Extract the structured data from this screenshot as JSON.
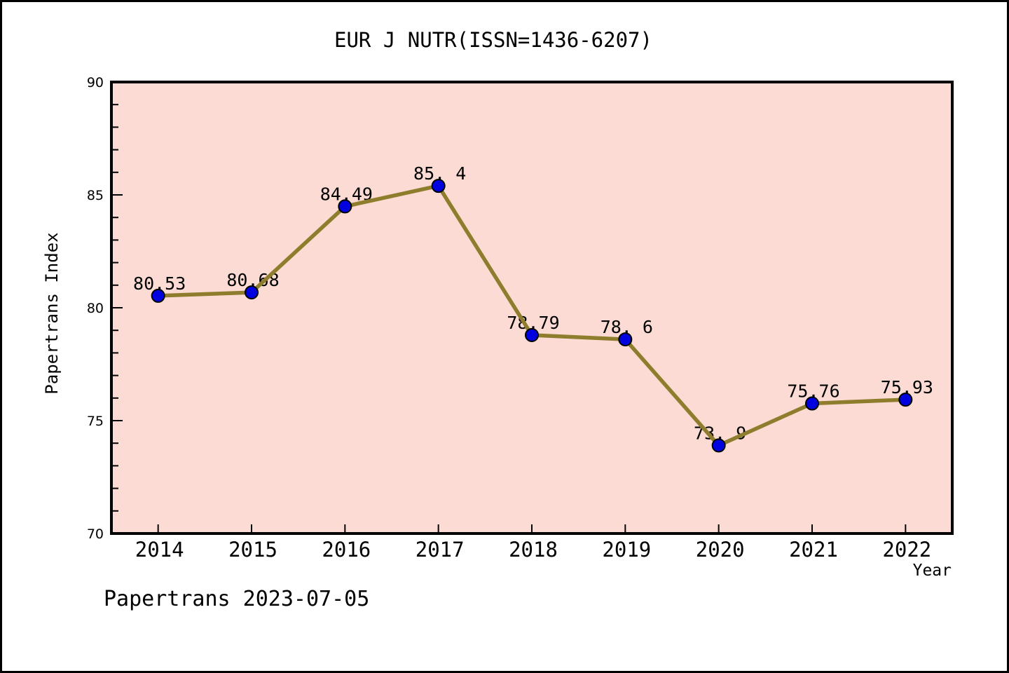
{
  "title": "EUR J NUTR(ISSN=1436-6207)",
  "footer": "Papertrans 2023-07-05",
  "chart_data": {
    "type": "line",
    "title": "EUR J NUTR(ISSN=1436-6207)",
    "xlabel": "Year",
    "ylabel": "Papertrans Index",
    "x": [
      2014,
      2015,
      2016,
      2017,
      2018,
      2019,
      2020,
      2021,
      2022
    ],
    "values": [
      80.53,
      80.68,
      84.49,
      85.4,
      78.79,
      78.6,
      73.9,
      75.76,
      75.93
    ],
    "point_labels": [
      "80.53",
      "80.68",
      "84.49",
      "85. 4",
      "78.79",
      "78. 6",
      "73. 9",
      "75.76",
      "75.93"
    ],
    "series_name": "Papertrans Index",
    "xlim": [
      2013.5,
      2022.5
    ],
    "ylim": [
      70,
      90
    ],
    "y_major_ticks": [
      70,
      75,
      80,
      85,
      90
    ],
    "y_minor_step": 1,
    "x_ticks": [
      2014,
      2015,
      2016,
      2017,
      2018,
      2019,
      2020,
      2021,
      2022
    ],
    "grid": false,
    "legend": null,
    "colors": {
      "plot_bg": "#FBDBD3",
      "frame": "#000000",
      "line": "#8E7D2C",
      "marker_fill": "#0202E0",
      "marker_edge": "#000000",
      "text": "#000000",
      "page_bg": "#FFFFFF"
    }
  }
}
